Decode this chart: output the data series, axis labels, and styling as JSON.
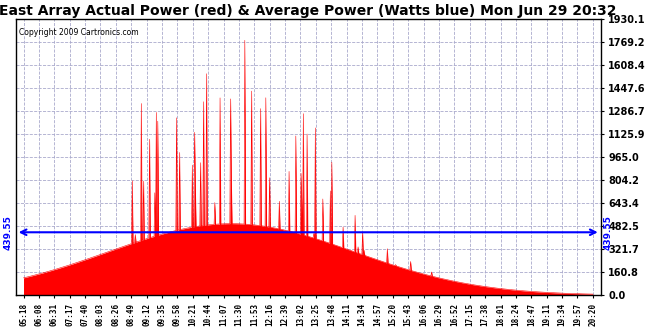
{
  "title": "East Array Actual Power (red) & Average Power (Watts blue) Mon Jun 29 20:32",
  "copyright": "Copyright 2009 Cartronics.com",
  "ylabel_right_values": [
    0.0,
    160.8,
    321.7,
    482.5,
    643.4,
    804.2,
    965.0,
    1125.9,
    1286.7,
    1447.6,
    1608.4,
    1769.2,
    1930.1
  ],
  "ymax": 1930.1,
  "ymin": 0.0,
  "average_line_y": 439.55,
  "average_label": "439.55",
  "background_color": "#ffffff",
  "plot_bg_color": "#ffffff",
  "grid_color": "#aaaacc",
  "bar_color": "#ff0000",
  "line_color": "#0000ff",
  "title_fontsize": 10,
  "tick_labels": [
    "05:18",
    "06:08",
    "06:31",
    "07:17",
    "07:40",
    "08:03",
    "08:26",
    "08:49",
    "09:12",
    "09:35",
    "09:58",
    "10:21",
    "10:44",
    "11:07",
    "11:30",
    "11:53",
    "12:16",
    "12:39",
    "13:02",
    "13:25",
    "13:48",
    "14:11",
    "14:34",
    "14:57",
    "15:20",
    "15:43",
    "16:06",
    "16:29",
    "16:52",
    "17:15",
    "17:38",
    "18:01",
    "18:24",
    "18:47",
    "19:11",
    "19:34",
    "19:57",
    "20:20"
  ]
}
